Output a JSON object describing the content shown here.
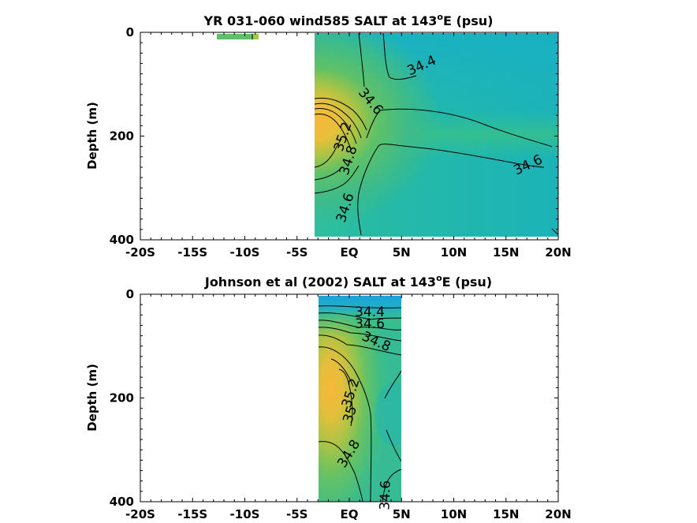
{
  "chart_data": [
    {
      "type": "heatmap",
      "title": "YR 031-060 wind585 SALT at 143",
      "title_sup": "o",
      "title_suffix": "E (psu)",
      "xlabel": "",
      "ylabel": "Depth (m)",
      "xticks": [
        "-20S",
        "-15S",
        "-10S",
        "-5S",
        "EQ",
        "5N",
        "10N",
        "15N",
        "20N"
      ],
      "xtick_values": [
        -20,
        -15,
        -10,
        -5,
        0,
        5,
        10,
        15,
        20
      ],
      "yticks": [
        "0",
        "200",
        "400"
      ],
      "ytick_values": [
        0,
        200,
        400
      ],
      "xlim": [
        -20,
        20
      ],
      "ylim": [
        400,
        0
      ],
      "data_extent_lat": [
        -2.8,
        20
      ],
      "surface_patch_lat": [
        -10.5,
        -8.8
      ],
      "contour_labels": [
        {
          "text": "34.4",
          "lat": 2.2,
          "depth": 70
        },
        {
          "text": "34.6",
          "lat": 0.3,
          "depth": 140
        },
        {
          "text": "35.2",
          "lat": -0.7,
          "depth": 205
        },
        {
          "text": "34.8",
          "lat": -0.1,
          "depth": 248
        },
        {
          "text": "34.6",
          "lat": 14.8,
          "depth": 252
        },
        {
          "text": "34.6",
          "lat": -0.7,
          "depth": 340
        }
      ]
    },
    {
      "type": "heatmap",
      "title": "Johnson et al (2002) SALT at 143",
      "title_sup": "o",
      "title_suffix": "E (psu)",
      "xlabel": "",
      "ylabel": "Depth (m)",
      "xticks": [
        "-20S",
        "-15S",
        "-10S",
        "-5S",
        "EQ",
        "5N",
        "10N",
        "15N",
        "20N"
      ],
      "xtick_values": [
        -20,
        -15,
        -10,
        -5,
        0,
        5,
        10,
        15,
        20
      ],
      "yticks": [
        "0",
        "200",
        "400"
      ],
      "ytick_values": [
        0,
        200,
        400
      ],
      "xlim": [
        -20,
        20
      ],
      "ylim": [
        400,
        0
      ],
      "data_extent_lat": [
        -2.3,
        5
      ],
      "contour_labels": [
        {
          "text": "34.4",
          "lat": 1.9,
          "depth": 37
        },
        {
          "text": "34.6",
          "lat": 1.9,
          "depth": 60
        },
        {
          "text": "34.8",
          "lat": 2.4,
          "depth": 88
        },
        {
          "text": "35.2",
          "lat": 0.2,
          "depth": 210
        },
        {
          "text": "35",
          "lat": 0.1,
          "depth": 240
        },
        {
          "text": "34.8",
          "lat": -0.4,
          "depth": 310
        },
        {
          "text": "34.6",
          "lat": 3.5,
          "depth": 388
        }
      ]
    }
  ]
}
